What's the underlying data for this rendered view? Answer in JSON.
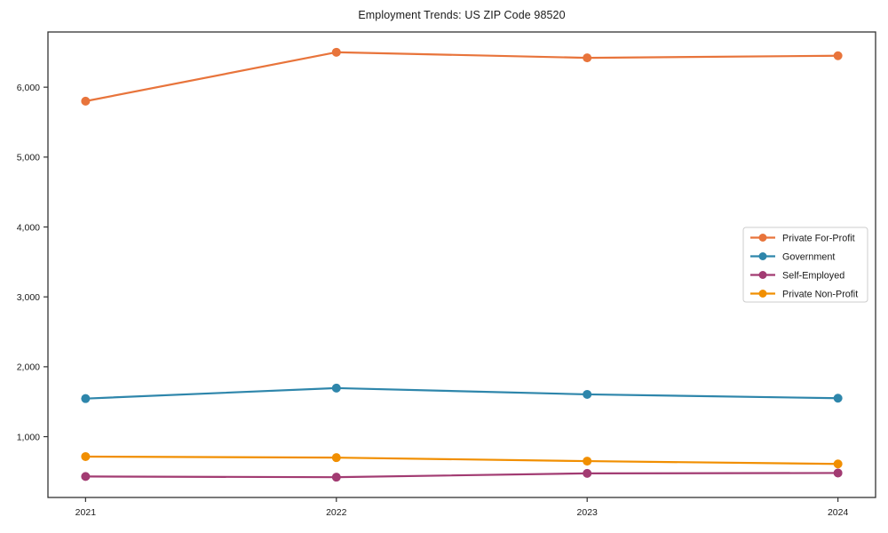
{
  "page": {
    "background": "#ffffff",
    "text_color": "#1a1a1a",
    "spine_color": "#333333"
  },
  "chart_data": {
    "type": "line",
    "title": "Employment Trends: US ZIP Code 98520",
    "xlabel": "",
    "ylabel": "",
    "grid": false,
    "legend_position": "center-right",
    "x": [
      2021,
      2022,
      2023,
      2024
    ],
    "x_tick_labels": [
      "2021",
      "2022",
      "2023",
      "2024"
    ],
    "y_ticks": [
      1000,
      2000,
      3000,
      4000,
      5000,
      6000
    ],
    "y_tick_labels": [
      "1,000",
      "2,000",
      "3,000",
      "4,000",
      "5,000",
      "6,000"
    ],
    "xlim": [
      2020.85,
      2024.15
    ],
    "ylim": [
      130,
      6790
    ],
    "marker": "circle",
    "series": [
      {
        "name": "Private For-Profit",
        "color": "#E8743B",
        "values": [
          5800,
          6500,
          6420,
          6450
        ]
      },
      {
        "name": "Government",
        "color": "#2E86AB",
        "values": [
          1545,
          1695,
          1605,
          1550
        ]
      },
      {
        "name": "Self-Employed",
        "color": "#A23B72",
        "values": [
          430,
          420,
          475,
          480
        ]
      },
      {
        "name": "Private Non-Profit",
        "color": "#F18F01",
        "values": [
          715,
          700,
          650,
          610
        ]
      }
    ],
    "legend": {
      "labels": [
        "Private For-Profit",
        "Government",
        "Self-Employed",
        "Private Non-Profit"
      ],
      "border_color": "#cccccc",
      "background": "#ffffff"
    }
  }
}
